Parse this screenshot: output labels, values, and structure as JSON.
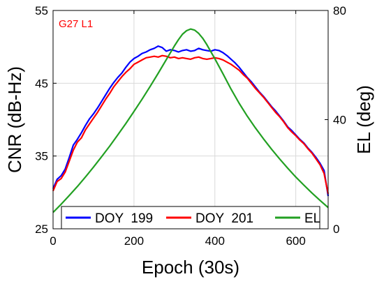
{
  "chart_data": {
    "type": "line",
    "annotation": "G27 L1",
    "annotation_color": "#ff0000",
    "xlabel": "Epoch (30s)",
    "ylabel_left": "CNR (dB-Hz)",
    "ylabel_right": "EL (deg)",
    "xlim": [
      0,
      680
    ],
    "ylim_left": [
      25,
      55
    ],
    "ylim_right": [
      0,
      80
    ],
    "x_ticks": [
      "0",
      "200",
      "400",
      "600"
    ],
    "y_ticks_left": [
      "25",
      "35",
      "45",
      "55"
    ],
    "y_ticks_right": [
      "0",
      "40",
      "80"
    ],
    "grid": true,
    "legend_position": "bottom",
    "series": [
      {
        "name": "DOY  199",
        "axis": "left",
        "color": "#0000ff",
        "x": [
          0,
          10,
          20,
          30,
          40,
          50,
          60,
          70,
          80,
          90,
          100,
          110,
          120,
          130,
          140,
          150,
          160,
          170,
          180,
          190,
          200,
          210,
          220,
          230,
          240,
          250,
          260,
          270,
          280,
          290,
          300,
          310,
          320,
          330,
          340,
          350,
          360,
          370,
          380,
          390,
          400,
          410,
          420,
          430,
          440,
          450,
          460,
          470,
          480,
          490,
          500,
          510,
          520,
          530,
          540,
          550,
          560,
          570,
          580,
          590,
          600,
          610,
          620,
          630,
          640,
          650,
          660,
          670,
          680
        ],
        "values": [
          30.5,
          31.8,
          32.3,
          33.2,
          34.8,
          36.5,
          37.3,
          38.2,
          39.2,
          40.1,
          40.8,
          41.6,
          42.5,
          43.4,
          44.3,
          45.1,
          45.8,
          46.4,
          47.2,
          47.9,
          48.4,
          48.7,
          49.1,
          49.3,
          49.6,
          49.8,
          50.1,
          49.9,
          49.4,
          49.6,
          49.5,
          49.3,
          49.5,
          49.6,
          49.4,
          49.5,
          49.8,
          49.6,
          49.5,
          49.4,
          49.6,
          49.5,
          49.2,
          48.8,
          48.3,
          47.8,
          47.2,
          46.5,
          45.8,
          45.2,
          44.5,
          43.8,
          43.2,
          42.5,
          41.8,
          41.2,
          40.5,
          39.8,
          39.0,
          38.5,
          37.9,
          37.3,
          36.8,
          36.1,
          35.5,
          34.8,
          34.0,
          33.0,
          29.5
        ]
      },
      {
        "name": "DOY  201",
        "axis": "left",
        "color": "#ff0000",
        "x": [
          0,
          10,
          20,
          30,
          40,
          50,
          60,
          70,
          80,
          90,
          100,
          110,
          120,
          130,
          140,
          150,
          160,
          170,
          180,
          190,
          200,
          210,
          220,
          230,
          240,
          250,
          260,
          270,
          280,
          290,
          300,
          310,
          320,
          330,
          340,
          350,
          360,
          370,
          380,
          390,
          400,
          410,
          420,
          430,
          440,
          450,
          460,
          470,
          480,
          490,
          500,
          510,
          520,
          530,
          540,
          550,
          560,
          570,
          580,
          590,
          600,
          610,
          620,
          630,
          640,
          650,
          660,
          670,
          680
        ],
        "values": [
          30.2,
          31.5,
          31.9,
          32.8,
          34.3,
          35.8,
          36.9,
          37.5,
          38.6,
          39.4,
          40.2,
          41.0,
          41.9,
          42.8,
          43.6,
          44.5,
          45.2,
          45.9,
          46.5,
          47.0,
          47.6,
          47.9,
          48.2,
          48.5,
          48.6,
          48.7,
          48.6,
          48.8,
          48.7,
          48.5,
          48.6,
          48.4,
          48.5,
          48.4,
          48.3,
          48.5,
          48.6,
          48.4,
          48.3,
          48.4,
          48.5,
          48.4,
          48.2,
          47.9,
          47.6,
          47.2,
          46.8,
          46.2,
          45.7,
          45.0,
          44.3,
          43.7,
          43.1,
          42.4,
          41.7,
          41.0,
          40.4,
          39.7,
          38.9,
          38.3,
          37.8,
          37.2,
          36.7,
          36.0,
          35.4,
          34.6,
          33.8,
          32.6,
          29.8
        ]
      },
      {
        "name": "EL",
        "axis": "right",
        "color": "#22a022",
        "x": [
          0,
          20,
          40,
          60,
          80,
          100,
          120,
          140,
          160,
          180,
          200,
          220,
          240,
          260,
          280,
          300,
          310,
          320,
          330,
          340,
          350,
          360,
          370,
          380,
          400,
          420,
          440,
          460,
          480,
          500,
          520,
          540,
          560,
          580,
          600,
          620,
          640,
          660,
          680
        ],
        "values": [
          6.0,
          9.0,
          12.2,
          15.5,
          19.0,
          22.6,
          26.4,
          30.3,
          34.4,
          38.6,
          43.0,
          47.5,
          52.2,
          57.0,
          62.0,
          67.0,
          69.3,
          71.3,
          72.6,
          73.2,
          72.8,
          71.6,
          69.8,
          67.5,
          62.3,
          56.8,
          51.2,
          46.0,
          41.3,
          37.0,
          33.0,
          29.2,
          25.6,
          22.2,
          19.0,
          16.0,
          13.1,
          10.4,
          7.8
        ]
      }
    ]
  }
}
